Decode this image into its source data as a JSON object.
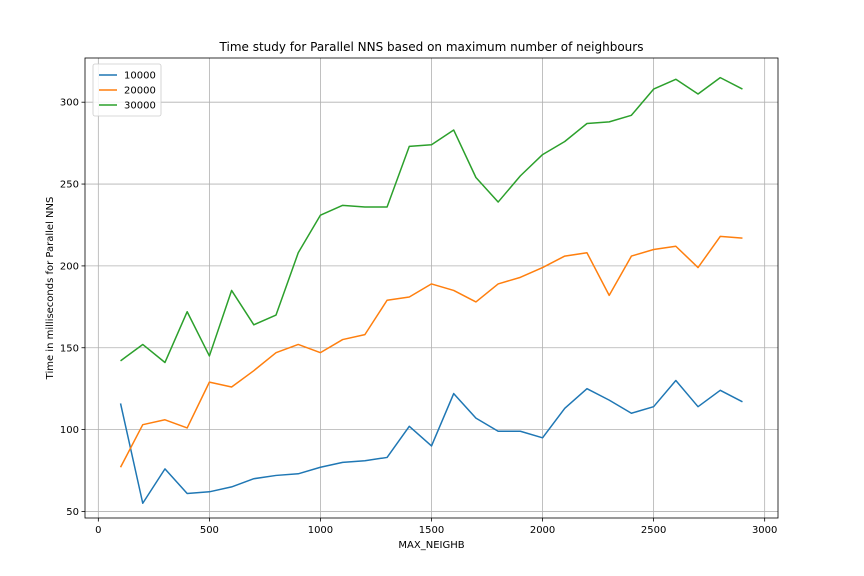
{
  "chart_data": {
    "type": "line",
    "title": "Time study for Parallel NNS based on maximum number of neighbours",
    "xlabel": "MAX_NEIGHB",
    "ylabel": "Time in milliseconds for Parallel NNS",
    "xlim": [
      -60,
      3060
    ],
    "ylim": [
      46,
      327
    ],
    "xticks": [
      0,
      500,
      1000,
      1500,
      2000,
      2500,
      3000
    ],
    "yticks": [
      50,
      100,
      150,
      200,
      250,
      300
    ],
    "grid": true,
    "legend_position": "top-left",
    "x": [
      100,
      200,
      300,
      400,
      500,
      600,
      700,
      800,
      900,
      1000,
      1100,
      1200,
      1300,
      1400,
      1500,
      1600,
      1700,
      1800,
      1900,
      2000,
      2100,
      2200,
      2300,
      2400,
      2500,
      2600,
      2700,
      2800,
      2900
    ],
    "series": [
      {
        "name": "10000",
        "color": "#1f77b4",
        "values": [
          116,
          55,
          76,
          61,
          62,
          65,
          70,
          72,
          73,
          77,
          80,
          81,
          83,
          102,
          90,
          122,
          107,
          99,
          99,
          95,
          113,
          125,
          118,
          110,
          114,
          130,
          114,
          124,
          117
        ]
      },
      {
        "name": "20000",
        "color": "#ff7f0e",
        "values": [
          77,
          103,
          106,
          101,
          129,
          126,
          136,
          147,
          152,
          147,
          155,
          158,
          179,
          181,
          189,
          185,
          178,
          189,
          193,
          199,
          206,
          208,
          182,
          206,
          210,
          212,
          199,
          218,
          217
        ]
      },
      {
        "name": "30000",
        "color": "#2ca02c",
        "values": [
          142,
          152,
          141,
          172,
          145,
          185,
          164,
          170,
          208,
          231,
          237,
          236,
          236,
          273,
          274,
          283,
          254,
          239,
          255,
          268,
          276,
          287,
          288,
          292,
          308,
          314,
          305,
          315,
          308
        ]
      }
    ]
  }
}
